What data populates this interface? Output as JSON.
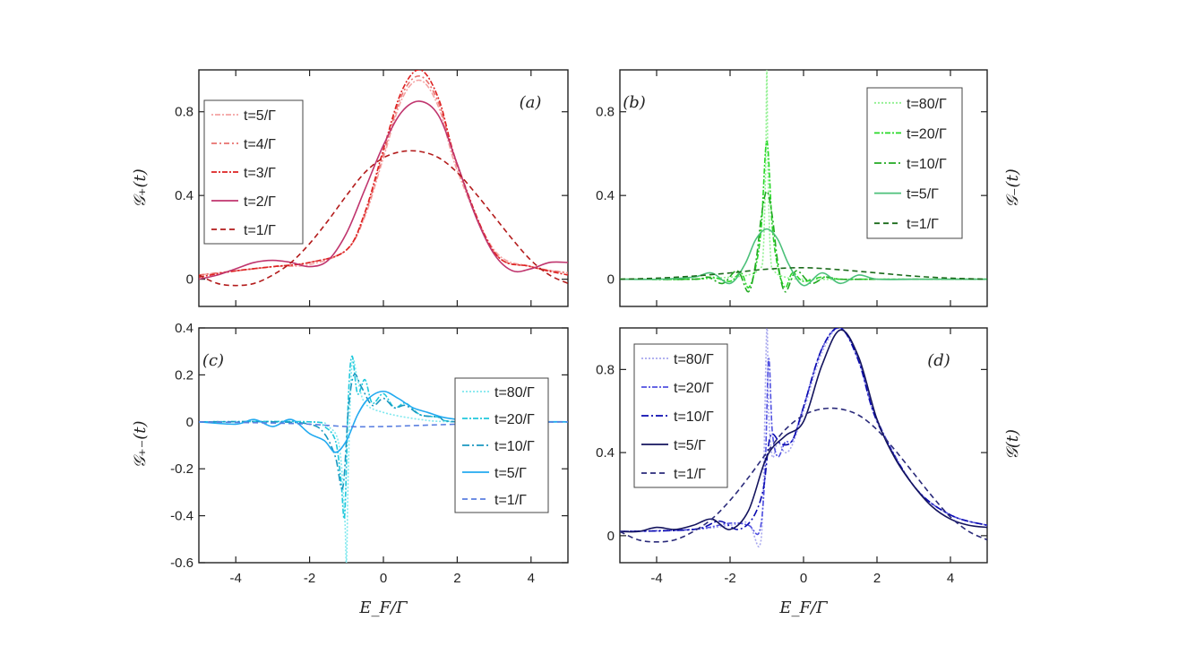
{
  "chart_data": [
    {
      "id": "a",
      "type": "line",
      "panel_label": "(a)",
      "ylabel": "𝒢₊(t)",
      "ylabel_side": "left",
      "xlabel": "",
      "xlim": [
        -5,
        5
      ],
      "ylim": [
        -0.13,
        1.0
      ],
      "xticks": [
        -4,
        -2,
        0,
        2,
        4
      ],
      "yticks": [
        0,
        0.4,
        0.8
      ],
      "ytick_labels": [
        "0",
        "0.4",
        "0.8"
      ],
      "show_xtick_labels": false,
      "legend_position": "top-left",
      "legend": [
        "t=5/Γ",
        "t=4/Γ",
        "t=3/Γ",
        "t=2/Γ",
        "t=1/Γ"
      ],
      "series": [
        {
          "name": "t=5/Γ",
          "color": "#f4a3a3",
          "dash": "2,2,6,2",
          "x": [
            -5,
            -4,
            -3,
            -2,
            -1,
            -0.5,
            0,
            0.5,
            1,
            1.5,
            2,
            3,
            4,
            5
          ],
          "y": [
            0.02,
            0.04,
            0.06,
            0.07,
            0.14,
            0.3,
            0.58,
            0.86,
            0.95,
            0.82,
            0.52,
            0.14,
            0.06,
            0.03
          ]
        },
        {
          "name": "t=4/Γ",
          "color": "#e8706e",
          "dash": "6,3,2,3",
          "x": [
            -5,
            -4,
            -3,
            -2,
            -1,
            -0.5,
            0,
            0.5,
            1,
            1.5,
            2,
            3,
            4,
            5
          ],
          "y": [
            0.02,
            0.04,
            0.06,
            0.08,
            0.14,
            0.31,
            0.6,
            0.88,
            0.97,
            0.84,
            0.54,
            0.13,
            0.06,
            0.03
          ]
        },
        {
          "name": "t=3/Γ",
          "color": "#dd2020",
          "dash": "6,2,2,2",
          "x": [
            -5,
            -4,
            -3,
            -2,
            -1,
            -0.5,
            0,
            0.5,
            1,
            1.5,
            2,
            3,
            4,
            5
          ],
          "y": [
            0.01,
            0.04,
            0.06,
            0.08,
            0.14,
            0.32,
            0.62,
            0.9,
            1.0,
            0.86,
            0.55,
            0.13,
            0.06,
            0.02
          ]
        },
        {
          "name": "t=2/Γ",
          "color": "#c0356e",
          "dash": "",
          "x": [
            -5,
            -4.5,
            -4,
            -3.5,
            -3,
            -2.5,
            -2,
            -1.5,
            -1,
            -0.5,
            0,
            0.5,
            1,
            1.5,
            2,
            2.5,
            3,
            3.5,
            4,
            4.5,
            5
          ],
          "y": [
            0.0,
            0.02,
            0.05,
            0.08,
            0.09,
            0.08,
            0.06,
            0.09,
            0.22,
            0.43,
            0.64,
            0.8,
            0.85,
            0.78,
            0.55,
            0.3,
            0.12,
            0.04,
            0.05,
            0.08,
            0.08
          ]
        },
        {
          "name": "t=1/Γ",
          "color": "#b31b1b",
          "dash": "6,4",
          "x": [
            -5,
            -4.5,
            -4,
            -3.5,
            -3,
            -2.5,
            -2,
            -1.5,
            -1,
            -0.5,
            0,
            0.5,
            1,
            1.5,
            2,
            2.5,
            3,
            3.5,
            4,
            4.5,
            5
          ],
          "y": [
            0.02,
            -0.02,
            -0.03,
            -0.02,
            0.02,
            0.08,
            0.17,
            0.28,
            0.4,
            0.51,
            0.58,
            0.61,
            0.61,
            0.58,
            0.51,
            0.41,
            0.3,
            0.19,
            0.09,
            0.02,
            -0.02
          ]
        }
      ]
    },
    {
      "id": "b",
      "type": "line",
      "panel_label": "(b)",
      "ylabel": "𝒢₋(t)",
      "ylabel_side": "right",
      "xlabel": "",
      "xlim": [
        -5,
        5
      ],
      "ylim": [
        -0.13,
        1.0
      ],
      "xticks": [
        -4,
        -2,
        0,
        2,
        4
      ],
      "yticks": [
        0,
        0.4,
        0.8
      ],
      "ytick_labels": [
        "0",
        "0.4",
        "0.8"
      ],
      "show_xtick_labels": false,
      "legend_position": "top-right",
      "legend": [
        "t=80/Γ",
        "t=20/Γ",
        "t=10/Γ",
        "t=5/Γ",
        "t=1/Γ"
      ],
      "series": [
        {
          "name": "t=80/Γ",
          "color": "#8ff08f",
          "dash": "2,2",
          "x": [
            -5,
            -3,
            -2,
            -1.5,
            -1.2,
            -1.1,
            -1.03,
            -1,
            -0.97,
            -0.9,
            -0.8,
            -0.5,
            0,
            2,
            5
          ],
          "y": [
            0.0,
            0.0,
            0.01,
            0.02,
            0.05,
            0.12,
            0.55,
            1.0,
            0.55,
            0.12,
            0.04,
            0.01,
            0.0,
            0.0,
            0.0
          ]
        },
        {
          "name": "t=20/Γ",
          "color": "#28d828",
          "dash": "6,2,2,2",
          "x": [
            -5,
            -3,
            -2.5,
            -2,
            -1.7,
            -1.5,
            -1.3,
            -1.15,
            -1,
            -0.85,
            -0.7,
            -0.5,
            -0.3,
            0,
            0.5,
            1,
            2,
            5
          ],
          "y": [
            0.0,
            0.0,
            0.01,
            -0.01,
            0.03,
            -0.04,
            0.06,
            0.25,
            0.66,
            0.25,
            0.06,
            -0.04,
            0.03,
            -0.01,
            0.01,
            0.0,
            0.0,
            0.0
          ]
        },
        {
          "name": "t=10/Γ",
          "color": "#22aa22",
          "dash": "8,3,2,3",
          "x": [
            -5,
            -3,
            -2.6,
            -2.2,
            -1.8,
            -1.5,
            -1.3,
            -1.15,
            -1,
            -0.85,
            -0.7,
            -0.5,
            -0.2,
            0.2,
            0.6,
            1,
            2,
            5
          ],
          "y": [
            0.0,
            0.0,
            0.01,
            -0.02,
            0.04,
            -0.06,
            0.08,
            0.3,
            0.42,
            0.3,
            0.08,
            -0.06,
            0.04,
            -0.02,
            0.01,
            0.0,
            0.0,
            0.0
          ]
        },
        {
          "name": "t=5/Γ",
          "color": "#4cc07a",
          "dash": "",
          "x": [
            -5,
            -4,
            -3,
            -2.5,
            -2,
            -1.6,
            -1.3,
            -1,
            -0.7,
            -0.4,
            0,
            0.5,
            1,
            1.5,
            2,
            3,
            4,
            5
          ],
          "y": [
            0.0,
            0.0,
            0.01,
            0.03,
            -0.02,
            0.07,
            0.19,
            0.24,
            0.19,
            0.07,
            -0.03,
            0.03,
            -0.02,
            0.02,
            0.0,
            0.0,
            0.0,
            0.0
          ]
        },
        {
          "name": "t=1/Γ",
          "color": "#1b6b1b",
          "dash": "6,4",
          "x": [
            -5,
            -4,
            -3,
            -2,
            -1,
            0,
            1,
            2,
            3,
            4,
            5
          ],
          "y": [
            0.0,
            0.005,
            0.015,
            0.03,
            0.048,
            0.055,
            0.045,
            0.03,
            0.015,
            0.005,
            0.0
          ]
        }
      ]
    },
    {
      "id": "c",
      "type": "line",
      "panel_label": "(c)",
      "ylabel": "𝒢₊₋(t)",
      "ylabel_side": "left",
      "xlabel": "E_F/Γ",
      "xlim": [
        -5,
        5
      ],
      "ylim": [
        -0.6,
        0.4
      ],
      "xticks": [
        -4,
        -2,
        0,
        2,
        4
      ],
      "xtick_labels": [
        "-4",
        "-2",
        "0",
        "2",
        "4"
      ],
      "yticks": [
        -0.6,
        -0.4,
        -0.2,
        0,
        0.2,
        0.4
      ],
      "ytick_labels": [
        "-0.6",
        "-0.4",
        "-0.2",
        "0",
        "0.2",
        "0.4"
      ],
      "show_xtick_labels": true,
      "legend_position": "right",
      "legend": [
        "t=80/Γ",
        "t=20/Γ",
        "t=10/Γ",
        "t=5/Γ",
        "t=1/Γ"
      ],
      "series": [
        {
          "name": "t=80/Γ",
          "color": "#7fe8ee",
          "dash": "2,2",
          "x": [
            -5,
            -2,
            -1.5,
            -1.2,
            -1.05,
            -1.0,
            -0.95,
            -0.85,
            -0.7,
            -0.5,
            0,
            1,
            2,
            5
          ],
          "y": [
            0.0,
            0.0,
            -0.02,
            -0.1,
            -0.4,
            -0.6,
            -0.2,
            0.25,
            0.18,
            0.08,
            0.04,
            0.01,
            0.0,
            0.0
          ]
        },
        {
          "name": "t=20/Γ",
          "color": "#20c8dc",
          "dash": "6,2,2,2",
          "x": [
            -5,
            -2,
            -1.6,
            -1.3,
            -1.15,
            -1.05,
            -0.95,
            -0.85,
            -0.7,
            -0.5,
            -0.3,
            0,
            0.3,
            0.6,
            1,
            1.5,
            2,
            5
          ],
          "y": [
            0.0,
            0.0,
            -0.02,
            -0.08,
            -0.25,
            -0.4,
            0.1,
            0.28,
            0.12,
            0.18,
            0.08,
            0.12,
            0.06,
            0.08,
            0.03,
            0.02,
            0.0,
            0.0
          ]
        },
        {
          "name": "t=10/Γ",
          "color": "#1a98c0",
          "dash": "8,3,2,3",
          "x": [
            -5,
            -3,
            -2,
            -1.6,
            -1.3,
            -1.1,
            -0.95,
            -0.8,
            -0.6,
            -0.3,
            0,
            0.3,
            0.6,
            1,
            1.5,
            2,
            5
          ],
          "y": [
            0.0,
            0.0,
            -0.01,
            -0.05,
            -0.15,
            -0.28,
            0.05,
            0.2,
            0.15,
            0.07,
            0.1,
            0.06,
            0.07,
            0.03,
            0.02,
            0.0,
            0.0
          ]
        },
        {
          "name": "t=5/Γ",
          "color": "#22aaf0",
          "dash": "",
          "x": [
            -5,
            -4,
            -3.5,
            -3,
            -2.5,
            -2,
            -1.6,
            -1.3,
            -1,
            -0.7,
            -0.4,
            0,
            0.4,
            0.8,
            1.2,
            1.6,
            2,
            2.5,
            3,
            4,
            5
          ],
          "y": [
            0.0,
            -0.01,
            0.01,
            -0.02,
            0.01,
            -0.05,
            -0.08,
            -0.13,
            -0.08,
            0.03,
            0.1,
            0.13,
            0.1,
            0.06,
            0.04,
            0.02,
            0.01,
            0.0,
            -0.01,
            0.0,
            0.0
          ]
        },
        {
          "name": "t=1/Γ",
          "color": "#5a7fe0",
          "dash": "6,4",
          "x": [
            -5,
            -3,
            -2,
            -1,
            0,
            1,
            2,
            3,
            5
          ],
          "y": [
            0.0,
            -0.005,
            -0.01,
            -0.02,
            -0.02,
            -0.015,
            -0.01,
            -0.005,
            0.0
          ]
        }
      ]
    },
    {
      "id": "d",
      "type": "line",
      "panel_label": "(d)",
      "ylabel": "𝒢(t)",
      "ylabel_side": "right",
      "xlabel": "E_F/Γ",
      "xlim": [
        -5,
        5
      ],
      "ylim": [
        -0.13,
        1.0
      ],
      "xticks": [
        -4,
        -2,
        0,
        2,
        4
      ],
      "xtick_labels": [
        "-4",
        "-2",
        "0",
        "2",
        "4"
      ],
      "yticks": [
        0,
        0.4,
        0.8
      ],
      "ytick_labels": [
        "0",
        "0.4",
        "0.8"
      ],
      "show_xtick_labels": true,
      "legend_position": "top-left",
      "legend": [
        "t=80/Γ",
        "t=20/Γ",
        "t=10/Γ",
        "t=5/Γ",
        "t=1/Γ"
      ],
      "series": [
        {
          "name": "t=80/Γ",
          "color": "#a8a8ee",
          "dash": "2,2",
          "x": [
            -5,
            -3,
            -2,
            -1.5,
            -1.2,
            -1.1,
            -1.0,
            -0.95,
            -0.85,
            -0.7,
            -0.5,
            -0.3,
            0,
            0.5,
            1,
            1.5,
            2,
            3,
            4,
            5
          ],
          "y": [
            0.02,
            0.03,
            0.05,
            0.06,
            -0.05,
            0.2,
            1.0,
            0.6,
            0.38,
            0.45,
            0.4,
            0.44,
            0.6,
            0.88,
            1.0,
            0.84,
            0.55,
            0.24,
            0.1,
            0.05
          ]
        },
        {
          "name": "t=20/Γ",
          "color": "#5050e0",
          "dash": "6,2,2,2",
          "x": [
            -5,
            -3,
            -2,
            -1.5,
            -1.2,
            -1.05,
            -0.95,
            -0.85,
            -0.7,
            -0.5,
            -0.3,
            0,
            0.5,
            1,
            1.5,
            2,
            3,
            4,
            5
          ],
          "y": [
            0.02,
            0.03,
            0.06,
            0.05,
            0.02,
            0.3,
            0.85,
            0.5,
            0.38,
            0.45,
            0.46,
            0.62,
            0.9,
            1.0,
            0.85,
            0.56,
            0.24,
            0.1,
            0.05
          ]
        },
        {
          "name": "t=10/Γ",
          "color": "#0a0ab0",
          "dash": "8,3,2,3",
          "x": [
            -5,
            -3,
            -2.3,
            -1.8,
            -1.4,
            -1.1,
            -0.9,
            -0.6,
            -0.3,
            0,
            0.5,
            1,
            1.5,
            2,
            3,
            4,
            5
          ],
          "y": [
            0.02,
            0.03,
            0.07,
            0.03,
            0.08,
            0.22,
            0.48,
            0.44,
            0.46,
            0.62,
            0.9,
            1.0,
            0.84,
            0.55,
            0.24,
            0.1,
            0.05
          ]
        },
        {
          "name": "t=5/Γ",
          "color": "#14145e",
          "dash": "",
          "x": [
            -5,
            -4.5,
            -4,
            -3.5,
            -3,
            -2.5,
            -2,
            -1.5,
            -1,
            -0.5,
            0,
            0.5,
            1,
            1.5,
            2,
            2.5,
            3,
            3.5,
            4,
            4.5,
            5
          ],
          "y": [
            0.02,
            0.02,
            0.04,
            0.03,
            0.05,
            0.08,
            0.03,
            0.12,
            0.38,
            0.48,
            0.55,
            0.82,
            0.99,
            0.86,
            0.56,
            0.37,
            0.24,
            0.14,
            0.08,
            0.05,
            0.04
          ]
        },
        {
          "name": "t=1/Γ",
          "color": "#2a2a7a",
          "dash": "6,4",
          "x": [
            -5,
            -4.5,
            -4,
            -3.5,
            -3,
            -2.5,
            -2,
            -1.5,
            -1,
            -0.5,
            0,
            0.5,
            1,
            1.5,
            2,
            2.5,
            3,
            3.5,
            4,
            4.5,
            5
          ],
          "y": [
            0.02,
            -0.02,
            -0.03,
            -0.02,
            0.02,
            0.08,
            0.17,
            0.28,
            0.4,
            0.51,
            0.58,
            0.61,
            0.61,
            0.58,
            0.51,
            0.41,
            0.3,
            0.19,
            0.09,
            0.02,
            -0.02
          ]
        }
      ]
    }
  ]
}
